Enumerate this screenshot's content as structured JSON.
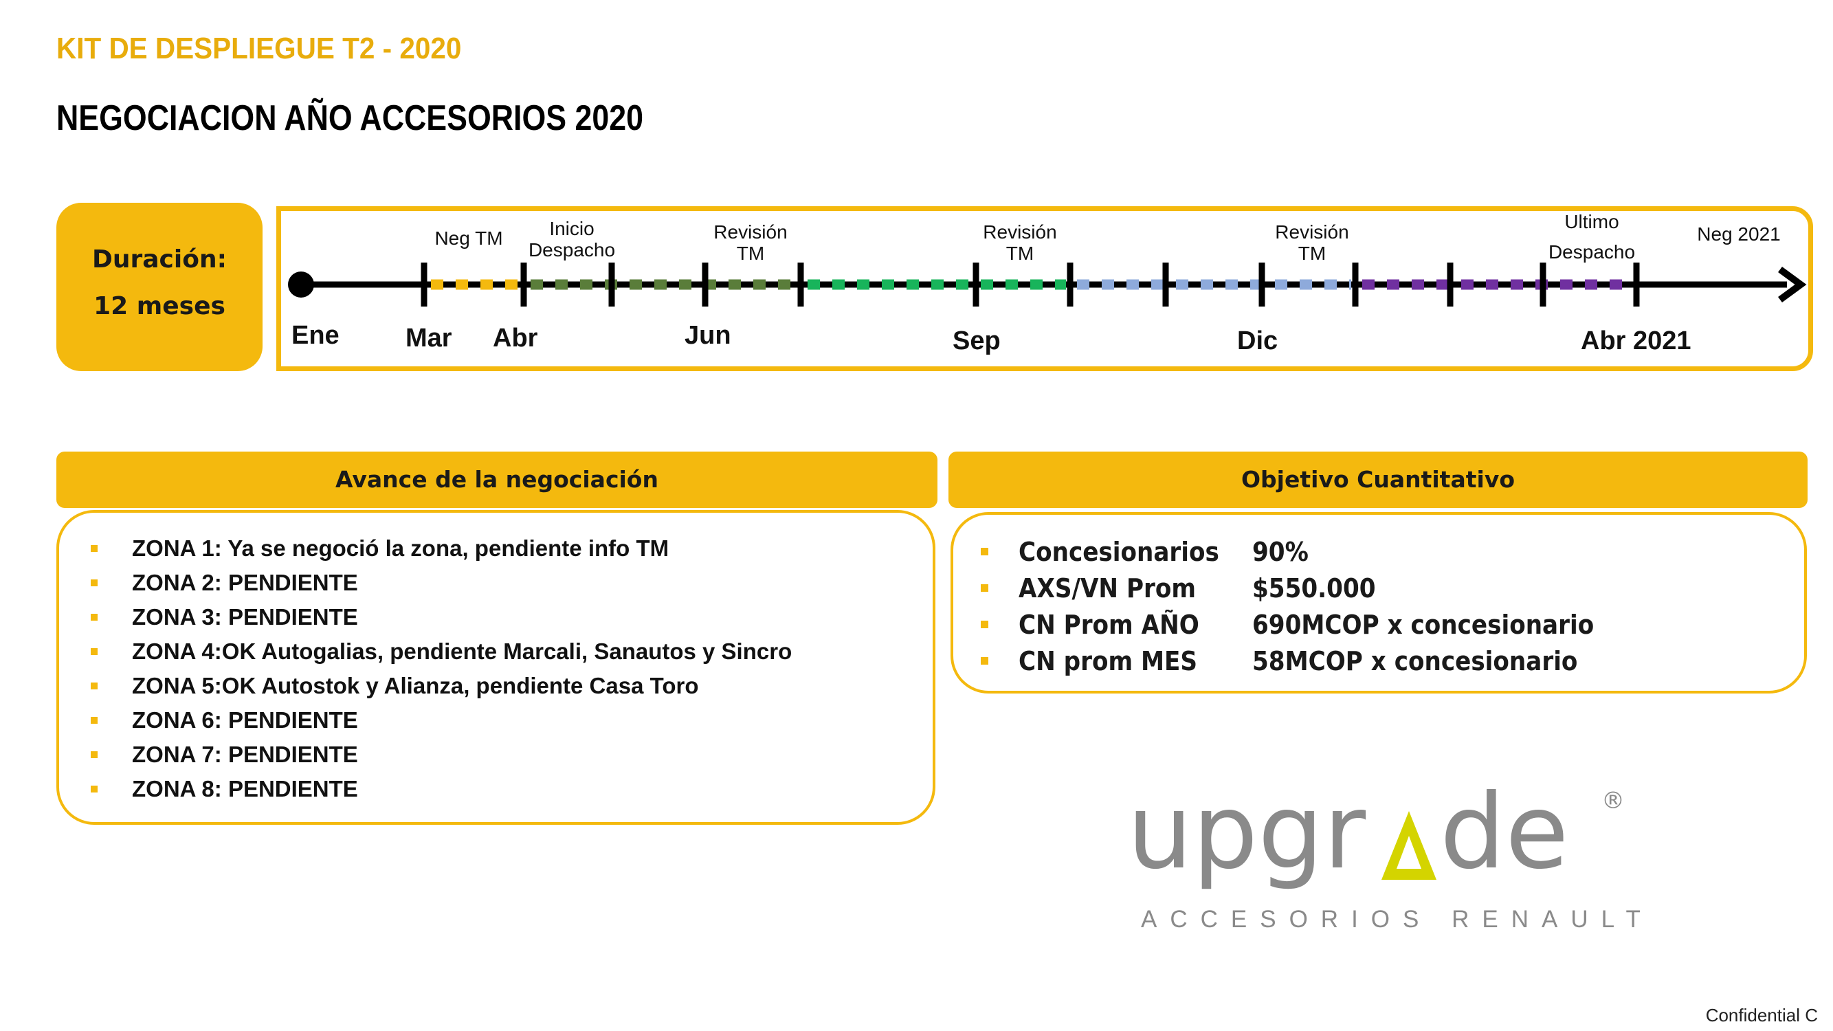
{
  "header": {
    "kit_title": "KIT DE DESPLIEGUE T2 - 2020",
    "page_title": "NEGOCIACION AÑO ACCESORIOS 2020"
  },
  "duration": {
    "label": "Duración:",
    "value": "12 meses"
  },
  "timeline": {
    "months": [
      "Ene",
      "Mar",
      "Abr",
      "Jun",
      "Sep",
      "Dic",
      "Abr 2021"
    ],
    "milestones": [
      [
        "Neg TM"
      ],
      [
        "Inicio",
        "Despacho"
      ],
      [
        "Revisión",
        "TM"
      ],
      [
        "Revisión",
        "TM"
      ],
      [
        "Revisión",
        "TM"
      ],
      [
        "Ultimo",
        "Despacho"
      ],
      [
        "Neg 2021"
      ]
    ],
    "segment_colors": [
      "#f4b90e",
      "#5a7d3a",
      "#18b45b",
      "#8eaadb",
      "#7030a0"
    ]
  },
  "avance": {
    "header": "Avance de la negociación",
    "items": [
      "ZONA 1: Ya se negoció la zona, pendiente info TM",
      "ZONA 2: PENDIENTE",
      "ZONA 3: PENDIENTE",
      "ZONA 4:OK Autogalias, pendiente Marcali, Sanautos y Sincro",
      "ZONA 5:OK Autostok y Alianza, pendiente Casa Toro",
      "ZONA 6: PENDIENTE",
      "ZONA 7: PENDIENTE",
      "ZONA 8: PENDIENTE"
    ]
  },
  "objetivo": {
    "header": "Objetivo Cuantitativo",
    "rows": [
      {
        "label": "Concesionarios",
        "value": "90%"
      },
      {
        "label": "AXS/VN Prom",
        "value": "$550.000"
      },
      {
        "label": "CN Prom AÑO",
        "value": "690MCOP x concesionario"
      },
      {
        "label": "CN prom MES",
        "value": "58MCOP x concesionario"
      }
    ]
  },
  "logo": {
    "wordmark": "upgrade",
    "registered": "®",
    "subtitle": "ACCESORIOS RENAULT",
    "color_gray": "#8a8a8a",
    "color_accent": "#d4d400"
  },
  "footer": {
    "confidential": "Confidential C"
  }
}
